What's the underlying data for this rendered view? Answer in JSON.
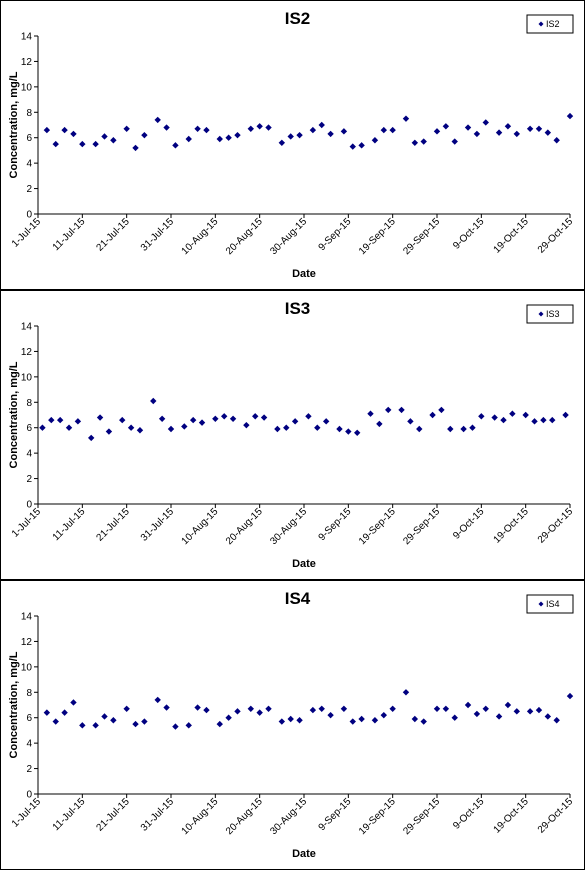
{
  "colors": {
    "marker": "#000080",
    "axis": "#000000",
    "background": "#ffffff"
  },
  "chart_data": [
    {
      "type": "scatter",
      "title": "IS2",
      "xlabel": "Date",
      "ylabel": "Concentration, mg/L",
      "xlim": [
        "2015-07-01",
        "2015-10-29"
      ],
      "ylim": [
        0,
        14
      ],
      "yticks": [
        "0",
        "2",
        "4",
        "6",
        "8",
        "10",
        "12",
        "14"
      ],
      "xticks": [
        {
          "date": "2015-07-01",
          "label": "1-Jul-15"
        },
        {
          "date": "2015-07-11",
          "label": "11-Jul-15"
        },
        {
          "date": "2015-07-21",
          "label": "21-Jul-15"
        },
        {
          "date": "2015-07-31",
          "label": "31-Jul-15"
        },
        {
          "date": "2015-08-10",
          "label": "10-Aug-15"
        },
        {
          "date": "2015-08-20",
          "label": "20-Aug-15"
        },
        {
          "date": "2015-08-30",
          "label": "30-Aug-15"
        },
        {
          "date": "2015-09-09",
          "label": "9-Sep-15"
        },
        {
          "date": "2015-09-19",
          "label": "19-Sep-15"
        },
        {
          "date": "2015-09-29",
          "label": "29-Sep-15"
        },
        {
          "date": "2015-10-09",
          "label": "9-Oct-15"
        },
        {
          "date": "2015-10-19",
          "label": "19-Oct-15"
        },
        {
          "date": "2015-10-29",
          "label": "29-Oct-15"
        }
      ],
      "grid": false,
      "legend": "top-right",
      "series": [
        {
          "name": "IS2",
          "points": [
            {
              "x": "2015-07-03",
              "y": 6.6
            },
            {
              "x": "2015-07-05",
              "y": 5.5
            },
            {
              "x": "2015-07-07",
              "y": 6.6
            },
            {
              "x": "2015-07-09",
              "y": 6.3
            },
            {
              "x": "2015-07-11",
              "y": 5.5
            },
            {
              "x": "2015-07-14",
              "y": 5.5
            },
            {
              "x": "2015-07-16",
              "y": 6.1
            },
            {
              "x": "2015-07-18",
              "y": 5.8
            },
            {
              "x": "2015-07-21",
              "y": 6.7
            },
            {
              "x": "2015-07-23",
              "y": 5.2
            },
            {
              "x": "2015-07-25",
              "y": 6.2
            },
            {
              "x": "2015-07-28",
              "y": 7.4
            },
            {
              "x": "2015-07-30",
              "y": 6.8
            },
            {
              "x": "2015-08-01",
              "y": 5.4
            },
            {
              "x": "2015-08-04",
              "y": 5.9
            },
            {
              "x": "2015-08-06",
              "y": 6.7
            },
            {
              "x": "2015-08-08",
              "y": 6.6
            },
            {
              "x": "2015-08-11",
              "y": 5.9
            },
            {
              "x": "2015-08-13",
              "y": 6.0
            },
            {
              "x": "2015-08-15",
              "y": 6.2
            },
            {
              "x": "2015-08-18",
              "y": 6.7
            },
            {
              "x": "2015-08-20",
              "y": 6.9
            },
            {
              "x": "2015-08-22",
              "y": 6.8
            },
            {
              "x": "2015-08-25",
              "y": 5.6
            },
            {
              "x": "2015-08-27",
              "y": 6.1
            },
            {
              "x": "2015-08-29",
              "y": 6.2
            },
            {
              "x": "2015-09-01",
              "y": 6.6
            },
            {
              "x": "2015-09-03",
              "y": 7.0
            },
            {
              "x": "2015-09-05",
              "y": 6.3
            },
            {
              "x": "2015-09-08",
              "y": 6.5
            },
            {
              "x": "2015-09-10",
              "y": 5.3
            },
            {
              "x": "2015-09-12",
              "y": 5.4
            },
            {
              "x": "2015-09-15",
              "y": 5.8
            },
            {
              "x": "2015-09-17",
              "y": 6.6
            },
            {
              "x": "2015-09-19",
              "y": 6.6
            },
            {
              "x": "2015-09-22",
              "y": 7.5
            },
            {
              "x": "2015-09-24",
              "y": 5.6
            },
            {
              "x": "2015-09-26",
              "y": 5.7
            },
            {
              "x": "2015-09-29",
              "y": 6.5
            },
            {
              "x": "2015-10-01",
              "y": 6.9
            },
            {
              "x": "2015-10-03",
              "y": 5.7
            },
            {
              "x": "2015-10-06",
              "y": 6.8
            },
            {
              "x": "2015-10-08",
              "y": 6.3
            },
            {
              "x": "2015-10-10",
              "y": 7.2
            },
            {
              "x": "2015-10-13",
              "y": 6.4
            },
            {
              "x": "2015-10-15",
              "y": 6.9
            },
            {
              "x": "2015-10-17",
              "y": 6.3
            },
            {
              "x": "2015-10-20",
              "y": 6.7
            },
            {
              "x": "2015-10-22",
              "y": 6.7
            },
            {
              "x": "2015-10-24",
              "y": 6.4
            },
            {
              "x": "2015-10-26",
              "y": 5.8
            },
            {
              "x": "2015-10-29",
              "y": 7.7
            }
          ]
        }
      ]
    },
    {
      "type": "scatter",
      "title": "IS3",
      "xlabel": "Date",
      "ylabel": "Concentration, mg/L",
      "xlim": [
        "2015-07-01",
        "2015-10-29"
      ],
      "ylim": [
        0,
        14
      ],
      "yticks": [
        "0",
        "2",
        "4",
        "6",
        "8",
        "10",
        "12",
        "14"
      ],
      "xticks": [
        {
          "date": "2015-07-01",
          "label": "1-Jul-15"
        },
        {
          "date": "2015-07-11",
          "label": "11-Jul-15"
        },
        {
          "date": "2015-07-21",
          "label": "21-Jul-15"
        },
        {
          "date": "2015-07-31",
          "label": "31-Jul-15"
        },
        {
          "date": "2015-08-10",
          "label": "10-Aug-15"
        },
        {
          "date": "2015-08-20",
          "label": "20-Aug-15"
        },
        {
          "date": "2015-08-30",
          "label": "30-Aug-15"
        },
        {
          "date": "2015-09-09",
          "label": "9-Sep-15"
        },
        {
          "date": "2015-09-19",
          "label": "19-Sep-15"
        },
        {
          "date": "2015-09-29",
          "label": "29-Sep-15"
        },
        {
          "date": "2015-10-09",
          "label": "9-Oct-15"
        },
        {
          "date": "2015-10-19",
          "label": "19-Oct-15"
        },
        {
          "date": "2015-10-29",
          "label": "29-Oct-15"
        }
      ],
      "grid": false,
      "legend": "top-right",
      "series": [
        {
          "name": "IS3",
          "points": [
            {
              "x": "2015-07-02",
              "y": 6.0
            },
            {
              "x": "2015-07-04",
              "y": 6.6
            },
            {
              "x": "2015-07-06",
              "y": 6.6
            },
            {
              "x": "2015-07-08",
              "y": 6.0
            },
            {
              "x": "2015-07-10",
              "y": 6.5
            },
            {
              "x": "2015-07-13",
              "y": 5.2
            },
            {
              "x": "2015-07-15",
              "y": 6.8
            },
            {
              "x": "2015-07-17",
              "y": 5.7
            },
            {
              "x": "2015-07-20",
              "y": 6.6
            },
            {
              "x": "2015-07-22",
              "y": 6.0
            },
            {
              "x": "2015-07-24",
              "y": 5.8
            },
            {
              "x": "2015-07-27",
              "y": 8.1
            },
            {
              "x": "2015-07-29",
              "y": 6.7
            },
            {
              "x": "2015-07-31",
              "y": 5.9
            },
            {
              "x": "2015-08-03",
              "y": 6.1
            },
            {
              "x": "2015-08-05",
              "y": 6.6
            },
            {
              "x": "2015-08-07",
              "y": 6.4
            },
            {
              "x": "2015-08-10",
              "y": 6.7
            },
            {
              "x": "2015-08-12",
              "y": 6.9
            },
            {
              "x": "2015-08-14",
              "y": 6.7
            },
            {
              "x": "2015-08-17",
              "y": 6.2
            },
            {
              "x": "2015-08-19",
              "y": 6.9
            },
            {
              "x": "2015-08-21",
              "y": 6.8
            },
            {
              "x": "2015-08-24",
              "y": 5.9
            },
            {
              "x": "2015-08-26",
              "y": 6.0
            },
            {
              "x": "2015-08-28",
              "y": 6.5
            },
            {
              "x": "2015-08-31",
              "y": 6.9
            },
            {
              "x": "2015-09-02",
              "y": 6.0
            },
            {
              "x": "2015-09-04",
              "y": 6.5
            },
            {
              "x": "2015-09-07",
              "y": 5.9
            },
            {
              "x": "2015-09-09",
              "y": 5.7
            },
            {
              "x": "2015-09-11",
              "y": 5.6
            },
            {
              "x": "2015-09-14",
              "y": 7.1
            },
            {
              "x": "2015-09-16",
              "y": 6.3
            },
            {
              "x": "2015-09-18",
              "y": 7.4
            },
            {
              "x": "2015-09-21",
              "y": 7.4
            },
            {
              "x": "2015-09-23",
              "y": 6.5
            },
            {
              "x": "2015-09-25",
              "y": 5.9
            },
            {
              "x": "2015-09-28",
              "y": 7.0
            },
            {
              "x": "2015-09-30",
              "y": 7.4
            },
            {
              "x": "2015-10-02",
              "y": 5.9
            },
            {
              "x": "2015-10-05",
              "y": 5.9
            },
            {
              "x": "2015-10-07",
              "y": 6.0
            },
            {
              "x": "2015-10-09",
              "y": 6.9
            },
            {
              "x": "2015-10-12",
              "y": 6.8
            },
            {
              "x": "2015-10-14",
              "y": 6.6
            },
            {
              "x": "2015-10-16",
              "y": 7.1
            },
            {
              "x": "2015-10-19",
              "y": 7.0
            },
            {
              "x": "2015-10-21",
              "y": 6.5
            },
            {
              "x": "2015-10-23",
              "y": 6.6
            },
            {
              "x": "2015-10-25",
              "y": 6.6
            },
            {
              "x": "2015-10-28",
              "y": 7.0
            }
          ]
        }
      ]
    },
    {
      "type": "scatter",
      "title": "IS4",
      "xlabel": "Date",
      "ylabel": "Concentration, mg/L",
      "xlim": [
        "2015-07-01",
        "2015-10-29"
      ],
      "ylim": [
        0,
        14
      ],
      "yticks": [
        "0",
        "2",
        "4",
        "6",
        "8",
        "10",
        "12",
        "14"
      ],
      "xticks": [
        {
          "date": "2015-07-01",
          "label": "1-Jul-15"
        },
        {
          "date": "2015-07-11",
          "label": "11-Jul-15"
        },
        {
          "date": "2015-07-21",
          "label": "21-Jul-15"
        },
        {
          "date": "2015-07-31",
          "label": "31-Jul-15"
        },
        {
          "date": "2015-08-10",
          "label": "10-Aug-15"
        },
        {
          "date": "2015-08-20",
          "label": "20-Aug-15"
        },
        {
          "date": "2015-08-30",
          "label": "30-Aug-15"
        },
        {
          "date": "2015-09-09",
          "label": "9-Sep-15"
        },
        {
          "date": "2015-09-19",
          "label": "19-Sep-15"
        },
        {
          "date": "2015-09-29",
          "label": "29-Sep-15"
        },
        {
          "date": "2015-10-09",
          "label": "9-Oct-15"
        },
        {
          "date": "2015-10-19",
          "label": "19-Oct-15"
        },
        {
          "date": "2015-10-29",
          "label": "29-Oct-15"
        }
      ],
      "grid": false,
      "legend": "top-right",
      "series": [
        {
          "name": "IS4",
          "points": [
            {
              "x": "2015-07-03",
              "y": 6.4
            },
            {
              "x": "2015-07-05",
              "y": 5.7
            },
            {
              "x": "2015-07-07",
              "y": 6.4
            },
            {
              "x": "2015-07-09",
              "y": 7.2
            },
            {
              "x": "2015-07-11",
              "y": 5.4
            },
            {
              "x": "2015-07-14",
              "y": 5.4
            },
            {
              "x": "2015-07-16",
              "y": 6.1
            },
            {
              "x": "2015-07-18",
              "y": 5.8
            },
            {
              "x": "2015-07-21",
              "y": 6.7
            },
            {
              "x": "2015-07-23",
              "y": 5.5
            },
            {
              "x": "2015-07-25",
              "y": 5.7
            },
            {
              "x": "2015-07-28",
              "y": 7.4
            },
            {
              "x": "2015-07-30",
              "y": 6.8
            },
            {
              "x": "2015-08-01",
              "y": 5.3
            },
            {
              "x": "2015-08-04",
              "y": 5.4
            },
            {
              "x": "2015-08-06",
              "y": 6.8
            },
            {
              "x": "2015-08-08",
              "y": 6.6
            },
            {
              "x": "2015-08-11",
              "y": 5.5
            },
            {
              "x": "2015-08-13",
              "y": 6.0
            },
            {
              "x": "2015-08-15",
              "y": 6.5
            },
            {
              "x": "2015-08-18",
              "y": 6.7
            },
            {
              "x": "2015-08-20",
              "y": 6.4
            },
            {
              "x": "2015-08-22",
              "y": 6.7
            },
            {
              "x": "2015-08-25",
              "y": 5.7
            },
            {
              "x": "2015-08-27",
              "y": 5.9
            },
            {
              "x": "2015-08-29",
              "y": 5.8
            },
            {
              "x": "2015-09-01",
              "y": 6.6
            },
            {
              "x": "2015-09-03",
              "y": 6.7
            },
            {
              "x": "2015-09-05",
              "y": 6.2
            },
            {
              "x": "2015-09-08",
              "y": 6.7
            },
            {
              "x": "2015-09-10",
              "y": 5.7
            },
            {
              "x": "2015-09-12",
              "y": 5.9
            },
            {
              "x": "2015-09-15",
              "y": 5.8
            },
            {
              "x": "2015-09-17",
              "y": 6.2
            },
            {
              "x": "2015-09-19",
              "y": 6.7
            },
            {
              "x": "2015-09-22",
              "y": 8.0
            },
            {
              "x": "2015-09-24",
              "y": 5.9
            },
            {
              "x": "2015-09-26",
              "y": 5.7
            },
            {
              "x": "2015-09-29",
              "y": 6.7
            },
            {
              "x": "2015-10-01",
              "y": 6.7
            },
            {
              "x": "2015-10-03",
              "y": 6.0
            },
            {
              "x": "2015-10-06",
              "y": 7.0
            },
            {
              "x": "2015-10-08",
              "y": 6.3
            },
            {
              "x": "2015-10-10",
              "y": 6.7
            },
            {
              "x": "2015-10-13",
              "y": 6.1
            },
            {
              "x": "2015-10-15",
              "y": 7.0
            },
            {
              "x": "2015-10-17",
              "y": 6.5
            },
            {
              "x": "2015-10-20",
              "y": 6.5
            },
            {
              "x": "2015-10-22",
              "y": 6.6
            },
            {
              "x": "2015-10-24",
              "y": 6.1
            },
            {
              "x": "2015-10-26",
              "y": 5.8
            },
            {
              "x": "2015-10-29",
              "y": 7.7
            }
          ]
        }
      ]
    }
  ]
}
